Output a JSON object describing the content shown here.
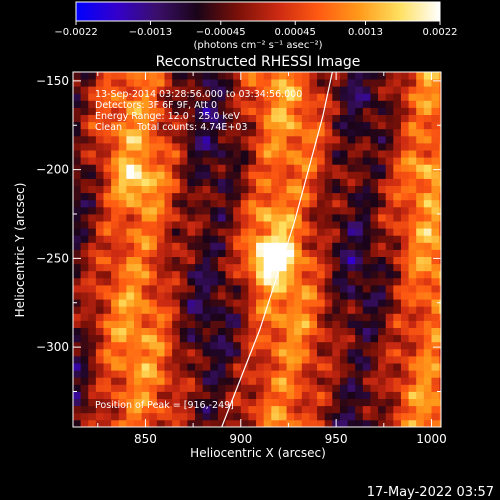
{
  "colorbar": {
    "ticks": [
      "-0.0022",
      "-0.0013",
      "-0.00045",
      "0.00045",
      "0.0013",
      "0.0022"
    ],
    "unit_label": "(photons cm⁻² s⁻¹ asec⁻²)",
    "min": -0.0022,
    "max": 0.0022,
    "colors": [
      "#0000ff",
      "#3300cc",
      "#3a0f6b",
      "#1a0418",
      "#7a1008",
      "#cc2a12",
      "#ff5a12",
      "#ff9a1a",
      "#ffe060",
      "#ffffff"
    ]
  },
  "chart_data": {
    "type": "heatmap",
    "title": "Reconstructed RHESSI Image",
    "xlabel": "Heliocentric X (arcsec)",
    "ylabel": "Heliocentric Y (arcsec)",
    "xlim": [
      812,
      1005
    ],
    "ylim": [
      -345,
      -145
    ],
    "xticks": [
      850,
      900,
      950,
      1000
    ],
    "yticks": [
      -150,
      -200,
      -250,
      -300
    ],
    "xtick_labels": [
      "850",
      "900",
      "950",
      "1000"
    ],
    "ytick_labels": [
      "−150",
      "−200",
      "−250",
      "−300"
    ],
    "peak": {
      "x": 916,
      "y": -249,
      "value": 0.0022
    },
    "secondary_sources": [
      {
        "x": 845,
        "y": -207,
        "value": 0.0012
      },
      {
        "x": 915,
        "y": -225,
        "value": 0.001
      },
      {
        "x": 995,
        "y": -200,
        "value": 0.0009
      }
    ],
    "limb_curve": [
      {
        "x": 890,
        "y": -345
      },
      {
        "x": 910,
        "y": -290
      },
      {
        "x": 928,
        "y": -230
      },
      {
        "x": 943,
        "y": -170
      },
      {
        "x": 948,
        "y": -145
      }
    ],
    "annotations": [
      "13-Sep-2014 03:28:56.000 to 03:34:56.000",
      "Detectors: 3F 6F 9F, Att 0",
      "Energy Range: 12.0 - 25.0 keV",
      "Clean     Total counts: 4.74E+03"
    ],
    "peak_label": "Position of Peak = [916,-249]"
  },
  "footer": {
    "timestamp": "17-May-2022 03:57"
  }
}
